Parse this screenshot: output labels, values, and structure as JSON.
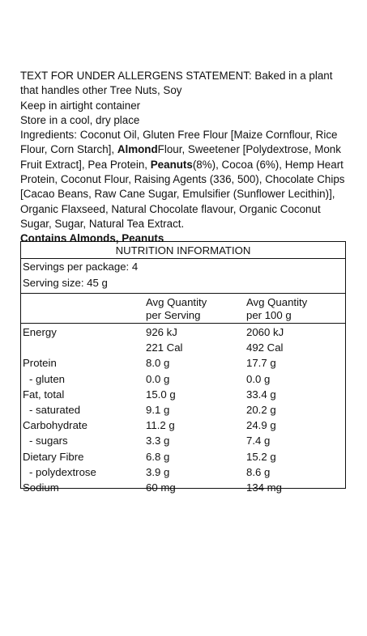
{
  "allergen_statement": "TEXT FOR UNDER ALLERGENS STATEMENT: Baked in a plant that handles other Tree Nuts, Soy",
  "storage": [
    "Keep in airtight container",
    "Store in a cool, dry place"
  ],
  "ingredients": {
    "part1": "Ingredients: Coconut Oil, Gluten Free Flour [Maize Cornflour, Rice Flour, Corn Starch], ",
    "bold1": "Almond",
    "part2": " Flour, Sweetener [Polydextrose, Monk Fruit Extract], Pea Protein, ",
    "bold2": "Peanuts",
    "part3": " (8%), Cocoa (6%), Hemp Heart Protein, Coconut Flour, Raising Agents (336, 500), Chocolate Chips [Cacao Beans, Raw Cane Sugar, Emulsifier (Sunflower Lecithin)], Organic Flaxseed, Natural Chocolate flavour, Organic Coconut Sugar, Sugar, Natural Tea Extract."
  },
  "contains": "Contains Almonds, Peanuts",
  "nutrition": {
    "title": "NUTRITION INFORMATION",
    "servings_per_package": "Servings per package: 4",
    "serving_size": "Serving size: 45 g",
    "col1_line1": "Avg Quantity",
    "col1_line2": "per Serving",
    "col2_line1": "Avg Quantity",
    "col2_line2": "per 100 g",
    "rows": [
      {
        "label": "Energy",
        "per_serving": "926 kJ",
        "per_100g": "2060 kJ"
      },
      {
        "label": "",
        "per_serving": "221 Cal",
        "per_100g": "492 Cal"
      },
      {
        "label": "Protein",
        "per_serving": "8.0 g",
        "per_100g": "17.7 g"
      },
      {
        "label": "   - gluten",
        "per_serving": "0.0 g",
        "per_100g": "0.0 g"
      },
      {
        "label": "Fat, total",
        "per_serving": "15.0 g",
        "per_100g": "33.4 g"
      },
      {
        "label": "   - saturated",
        "per_serving": "9.1 g",
        "per_100g": "20.2 g"
      },
      {
        "label": "Carbohydrate",
        "per_serving": "11.2 g",
        "per_100g": "24.9 g"
      },
      {
        "label": "   - sugars",
        "per_serving": "3.3 g",
        "per_100g": "7.4 g"
      },
      {
        "label": "Dietary Fibre",
        "per_serving": "6.8 g",
        "per_100g": "15.2 g"
      },
      {
        "label": "   - polydextrose",
        "per_serving": "3.9 g",
        "per_100g": "8.6 g"
      },
      {
        "label": "Sodium",
        "per_serving": "60 mg",
        "per_100g": "134 mg"
      }
    ]
  }
}
